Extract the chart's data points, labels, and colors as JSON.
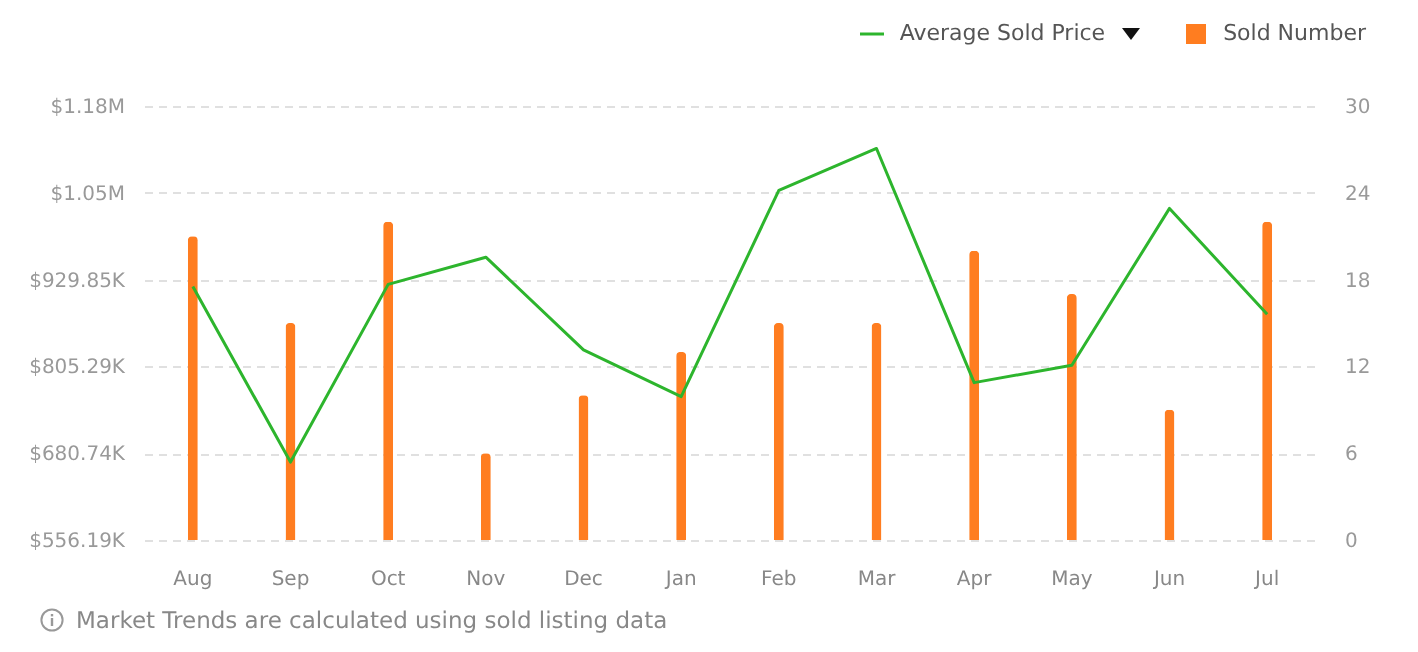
{
  "chart_data": {
    "type": "bar",
    "categories": [
      "Aug",
      "Sep",
      "Oct",
      "Nov",
      "Dec",
      "Jan",
      "Feb",
      "Mar",
      "Apr",
      "May",
      "Jun",
      "Jul"
    ],
    "series": [
      {
        "name": "Sold Number",
        "axis": "y2",
        "color": "#ff7d20",
        "values": [
          21,
          15,
          22,
          6,
          10,
          13,
          15,
          15,
          20,
          17,
          9,
          22
        ]
      },
      {
        "name": "Average Sold Price",
        "type": "line",
        "color": "#2db52d",
        "values": [
          920000,
          668000,
          923000,
          962000,
          829000,
          762000,
          1058000,
          1118000,
          782000,
          807000,
          1032000,
          880000
        ]
      }
    ],
    "ylim": [
      556190,
      1178950
    ],
    "yticks": [
      {
        "value": 556190,
        "label": "$556.19K"
      },
      {
        "value": 680740,
        "label": "$680.74K"
      },
      {
        "value": 805290,
        "label": "$805.29K"
      },
      {
        "value": 929850,
        "label": "$929.85K"
      },
      {
        "value": 1054400,
        "label": "$1.05M"
      },
      {
        "value": 1178950,
        "label": "$1.18M"
      }
    ],
    "y2lim": [
      0,
      30
    ],
    "y2ticks": [
      0,
      6,
      12,
      18,
      24,
      30
    ],
    "grid": "y",
    "legend": "top right",
    "annotations": [
      "Market Trends are calculated using sold listing data"
    ]
  }
}
